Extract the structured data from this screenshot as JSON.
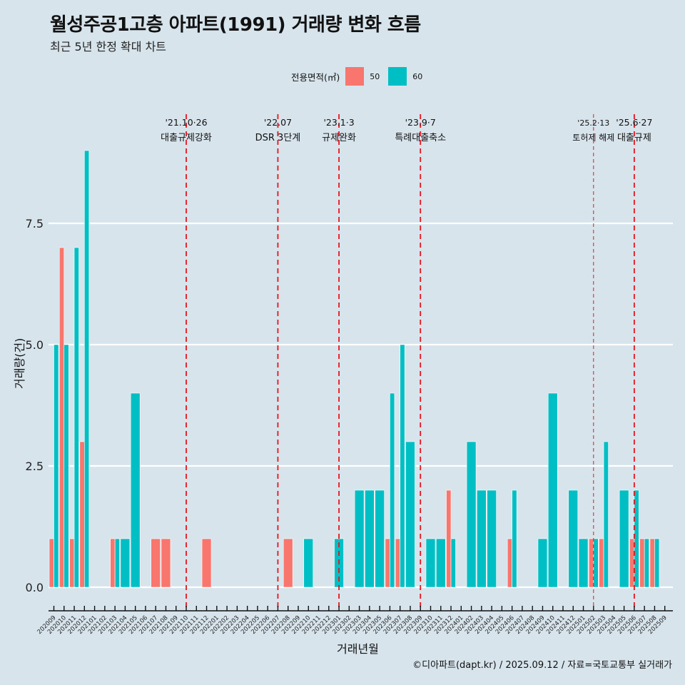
{
  "header": {
    "title": "월성주공1고층 아파트(1991) 거래량 변화 흐름",
    "subtitle": "최근 5년 한정 확대 차트"
  },
  "legend": {
    "title": "전용면적(㎡)",
    "items": [
      {
        "label": "50",
        "color": "#F8766D"
      },
      {
        "label": "60",
        "color": "#00BFC4"
      }
    ]
  },
  "footer": "©디아파트(dapt.kr) / 2025.09.12 / 자료=국토교통부 실거래가",
  "chart_data": {
    "type": "bar",
    "title": "월성주공1고층 아파트(1991) 거래량 변화 흐름",
    "subtitle": "최근 5년 한정 확대 차트",
    "xlabel": "거래년월",
    "ylabel": "거래량(건)",
    "ylim": [
      0,
      9
    ],
    "yticks": [
      0.0,
      2.5,
      5.0,
      7.5
    ],
    "ytick_labels": [
      "0.0",
      "2.5",
      "5.0",
      "7.5"
    ],
    "grid": true,
    "legend_position": "top",
    "bar_mode": "dodge",
    "categories": [
      "202009",
      "202010",
      "202011",
      "202012",
      "202101",
      "202102",
      "202103",
      "202104",
      "202105",
      "202106",
      "202107",
      "202108",
      "202109",
      "202110",
      "202111",
      "202112",
      "202201",
      "202202",
      "202203",
      "202204",
      "202205",
      "202206",
      "202207",
      "202208",
      "202209",
      "202210",
      "202211",
      "202212",
      "202301",
      "202302",
      "202303",
      "202304",
      "202305",
      "202306",
      "202307",
      "202308",
      "202309",
      "202310",
      "202311",
      "202312",
      "202401",
      "202402",
      "202403",
      "202404",
      "202405",
      "202406",
      "202407",
      "202408",
      "202409",
      "202410",
      "202411",
      "202412",
      "202501",
      "202502",
      "202503",
      "202504",
      "202505",
      "202506",
      "202507",
      "202508",
      "202509"
    ],
    "series": [
      {
        "name": "50",
        "color": "#F8766D",
        "values": {
          "202009": 1,
          "202010": 7,
          "202011": 1,
          "202012": 3,
          "202103": 1,
          "202107": 1,
          "202108": 1,
          "202112": 1,
          "202208": 1,
          "202306": 1,
          "202307": 1,
          "202312": 2,
          "202406": 1,
          "202502": 1,
          "202503": 1,
          "202506": 1,
          "202507": 1,
          "202508": 1
        }
      },
      {
        "name": "60",
        "color": "#00BFC4",
        "values": {
          "202009": 5,
          "202010": 5,
          "202011": 7,
          "202012": 9,
          "202103": 1,
          "202104": 1,
          "202105": 4,
          "202210": 1,
          "202301": 1,
          "202303": 2,
          "202304": 2,
          "202305": 2,
          "202306": 4,
          "202307": 5,
          "202308": 3,
          "202310": 1,
          "202311": 1,
          "202312": 1,
          "202402": 3,
          "202403": 2,
          "202404": 2,
          "202406": 2,
          "202409": 1,
          "202410": 4,
          "202412": 2,
          "202501": 1,
          "202502": 1,
          "202503": 3,
          "202505": 2,
          "202506": 2,
          "202507": 1,
          "202508": 1
        }
      }
    ],
    "annotations": [
      {
        "month": "202110",
        "date": "'21.10·26",
        "label": "대출규제강화",
        "style": "bold-dash"
      },
      {
        "month": "202207",
        "date": "'22.07",
        "label": "DSR 3단계",
        "style": "bold-dash"
      },
      {
        "month": "202301",
        "date": "'23.1·3",
        "label": "규제완화",
        "style": "bold-dash"
      },
      {
        "month": "202309",
        "date": "'23.9·7",
        "label": "특례대출축소",
        "style": "bold-dash"
      },
      {
        "month": "202502",
        "date": "'25.2·13",
        "label": "토허제 해제",
        "style": "thin-dash"
      },
      {
        "month": "202506",
        "date": "'25.6·27",
        "label": "대출규제",
        "style": "bold-dash"
      }
    ]
  }
}
